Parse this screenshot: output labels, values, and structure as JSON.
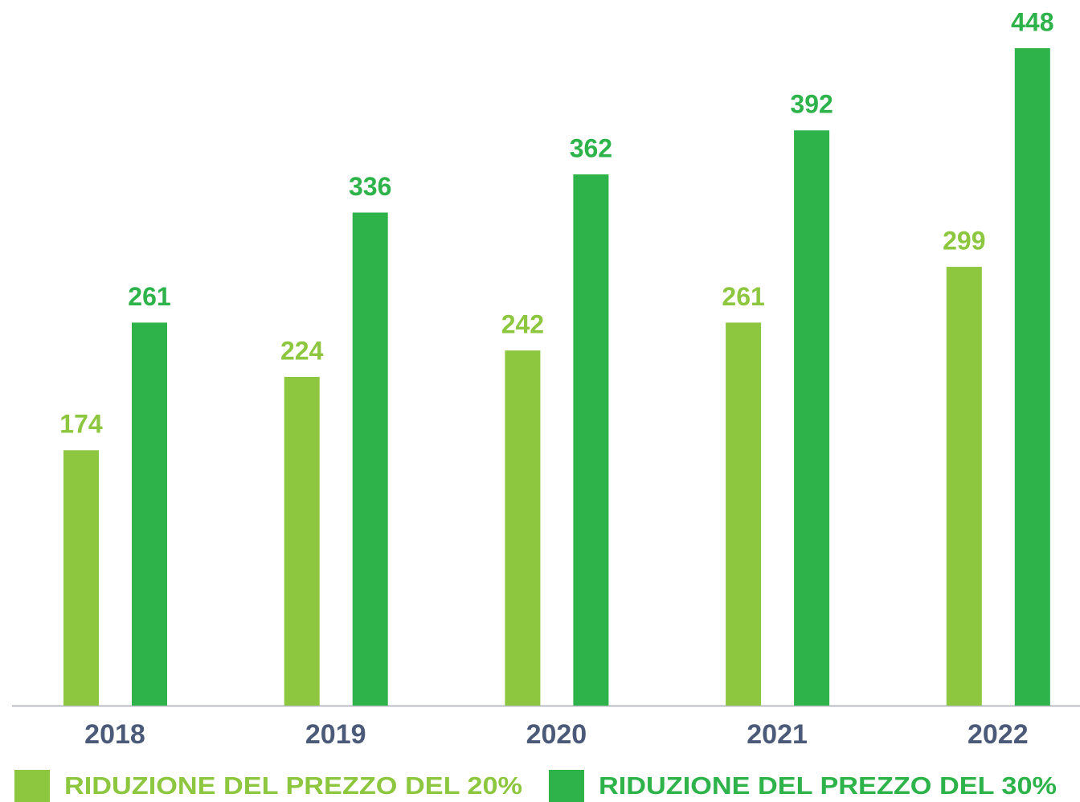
{
  "chart_data": {
    "type": "bar",
    "categories": [
      "2018",
      "2019",
      "2020",
      "2021",
      "2022"
    ],
    "series": [
      {
        "name": "RIDUZIONE DEL PREZZO DEL 20%",
        "color": "#8dc63f",
        "values": [
          174,
          224,
          242,
          261,
          299
        ]
      },
      {
        "name": "RIDUZIONE DEL PREZZO DEL 30%",
        "color": "#2db34a",
        "values": [
          261,
          336,
          362,
          392,
          448
        ]
      }
    ],
    "legend": "bottom"
  }
}
